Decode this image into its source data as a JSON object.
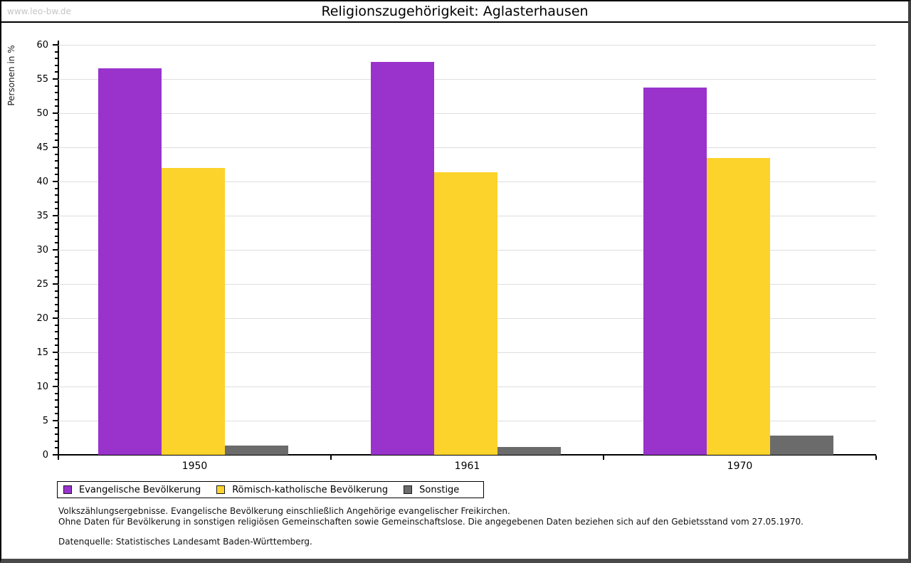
{
  "page": {
    "watermark": "www.leo-bw.de",
    "title": "Religionszugehörigkeit: Aglasterhausen"
  },
  "chart_data": {
    "type": "bar",
    "title": "Religionszugehörigkeit: Aglasterhausen",
    "ylabel": "Personen in %",
    "xlabel": "",
    "ylim": [
      0,
      60
    ],
    "ytick_step": 5,
    "y_minor_step": 1,
    "grid": "horizontal-major",
    "legend_position": "bottom-left",
    "categories": [
      "1950",
      "1961",
      "1970"
    ],
    "series": [
      {
        "name": "Evangelische Bevölkerung",
        "color": "#9933CC",
        "values": [
          56.6,
          57.5,
          53.8
        ]
      },
      {
        "name": "Römisch-katholische Bevölkerung",
        "color": "#FCD32B",
        "values": [
          42.0,
          41.4,
          43.4
        ]
      },
      {
        "name": "Sonstige",
        "color": "#6B6B6B",
        "values": [
          1.4,
          1.1,
          2.8
        ]
      }
    ]
  },
  "footnotes": {
    "line1": "Volkszählungsergebnisse. Evangelische Bevölkerung einschließlich Angehörige evangelischer Freikirchen.",
    "line2": "Ohne Daten für Bevölkerung in sonstigen religiösen Gemeinschaften sowie Gemeinschaftslose. Die angegebenen Daten beziehen sich auf den Gebietsstand vom 27.05.1970.",
    "source": "Datenquelle: Statistisches Landesamt Baden-Württemberg."
  },
  "colors": {
    "grid": "#dedede",
    "axis": "#000000",
    "watermark": "#c6c6c6"
  }
}
